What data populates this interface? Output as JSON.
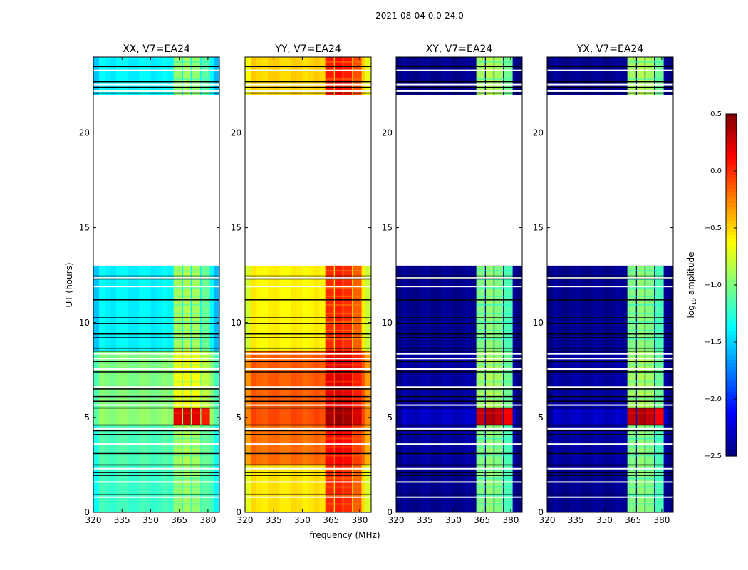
{
  "chart_data": {
    "type": "heatmap",
    "suptitle": "2021-08-04 0.0-24.0",
    "xlabel": "frequency (MHz)",
    "ylabel": "UT (hours)",
    "xlim": [
      320,
      386
    ],
    "ylim": [
      0,
      24
    ],
    "xticks": [
      "320",
      "335",
      "350",
      "365",
      "380"
    ],
    "xtick_values": [
      320,
      335,
      350,
      365,
      380
    ],
    "yticks": [
      "0",
      "5",
      "10",
      "15",
      "20"
    ],
    "ytick_values": [
      0,
      5,
      10,
      15,
      20
    ],
    "colorbar": {
      "label_pre": "log",
      "label_sub": "10",
      "label_post": " amplitude",
      "range": [
        -2.5,
        0.5
      ],
      "ticks": [
        "0.5",
        "0.0",
        "−0.5",
        "−1.0",
        "−1.5",
        "−2.0",
        "−2.5"
      ],
      "tick_values": [
        0.5,
        0.0,
        -0.5,
        -1.0,
        -1.5,
        -2.0,
        -2.5
      ],
      "colormap": "jet"
    },
    "rfi_band_mhz": [
      362,
      382
    ],
    "panels": [
      {
        "title": "XX, V7=EA24",
        "segments": [
          {
            "t": [
              0,
              2.5
            ],
            "base": -1.2,
            "band": -0.95
          },
          {
            "t": [
              2.5,
              4.6
            ],
            "base": -1.15,
            "band": -0.9
          },
          {
            "t": [
              4.6,
              5.5
            ],
            "base": -0.95,
            "band": 0.2
          },
          {
            "t": [
              5.5,
              8.5
            ],
            "base": -1.0,
            "band": -0.65
          },
          {
            "t": [
              8.5,
              13.0
            ],
            "base": -1.4,
            "band": -0.9
          },
          {
            "t": [
              22.0,
              24.0
            ],
            "base": -1.4,
            "band": -0.95
          }
        ]
      },
      {
        "title": "YY, V7=EA24",
        "segments": [
          {
            "t": [
              0,
              2.5
            ],
            "base": -0.55,
            "band": 0.0
          },
          {
            "t": [
              2.5,
              4.6
            ],
            "base": -0.2,
            "band": 0.1
          },
          {
            "t": [
              4.6,
              5.5
            ],
            "base": -0.1,
            "band": 0.4
          },
          {
            "t": [
              5.5,
              8.5
            ],
            "base": -0.15,
            "band": 0.2
          },
          {
            "t": [
              8.5,
              13.0
            ],
            "base": -0.6,
            "band": 0.0
          },
          {
            "t": [
              22.0,
              24.0
            ],
            "base": -0.5,
            "band": 0.05
          }
        ]
      },
      {
        "title": "XY, V7=EA24",
        "segments": [
          {
            "t": [
              0,
              2.5
            ],
            "base": -2.45,
            "band": -1.0
          },
          {
            "t": [
              2.5,
              4.6
            ],
            "base": -2.4,
            "band": -1.0
          },
          {
            "t": [
              4.6,
              5.5
            ],
            "base": -2.3,
            "band": 0.3
          },
          {
            "t": [
              5.5,
              8.5
            ],
            "base": -2.4,
            "band": -0.9
          },
          {
            "t": [
              8.5,
              13.0
            ],
            "base": -2.45,
            "band": -1.0
          },
          {
            "t": [
              22.0,
              24.0
            ],
            "base": -2.45,
            "band": -0.9
          }
        ]
      },
      {
        "title": "YX, V7=EA24",
        "segments": [
          {
            "t": [
              0,
              2.5
            ],
            "base": -2.45,
            "band": -1.0
          },
          {
            "t": [
              2.5,
              4.6
            ],
            "base": -2.4,
            "band": -1.0
          },
          {
            "t": [
              4.6,
              5.5
            ],
            "base": -2.3,
            "band": 0.3
          },
          {
            "t": [
              5.5,
              8.5
            ],
            "base": -2.4,
            "band": -0.9
          },
          {
            "t": [
              8.5,
              13.0
            ],
            "base": -2.45,
            "band": -1.0
          },
          {
            "t": [
              22.0,
              24.0
            ],
            "base": -2.45,
            "band": -0.9
          }
        ]
      }
    ],
    "flagged_rows_black": [
      0.95,
      1.95,
      2.1,
      2.5,
      3.1,
      4.1,
      4.3,
      4.6,
      5.5,
      5.85,
      6.1,
      6.5,
      7.4,
      7.95,
      8.5,
      8.65,
      9.2,
      9.4,
      9.95,
      10.25,
      11.2,
      12.3,
      12.45,
      22.1,
      22.4,
      22.7,
      23.5
    ],
    "flagged_rows_white": [
      0.8,
      1.6,
      2.3,
      3.6,
      4.4,
      5.65,
      6.6,
      7.55,
      8.1,
      8.35,
      11.9,
      12.35,
      22.2,
      22.55,
      23.3
    ]
  }
}
